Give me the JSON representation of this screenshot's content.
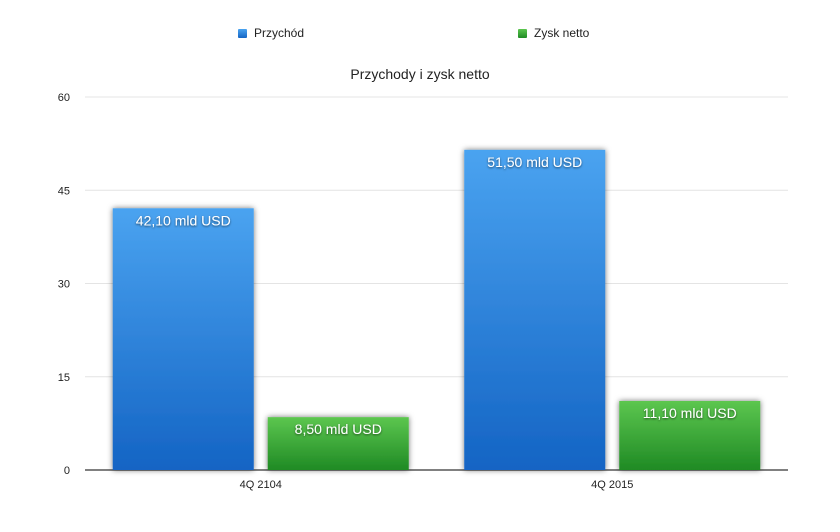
{
  "chart_data": {
    "type": "bar",
    "title": "Przychody i zysk netto",
    "categories": [
      "4Q 2104",
      "4Q 2015"
    ],
    "series": [
      {
        "name": "Przychód",
        "values": [
          42.1,
          51.5
        ],
        "labels": [
          "42,10 mld USD",
          "51,50 mld USD"
        ],
        "color_top": "#4aa3f0",
        "color_bottom": "#1464c4"
      },
      {
        "name": "Zysk netto",
        "values": [
          8.5,
          11.1
        ],
        "labels": [
          "8,50 mld USD",
          "11,10 mld USD"
        ],
        "color_top": "#5cc64f",
        "color_bottom": "#1f8a24"
      }
    ],
    "ylim": [
      0,
      60
    ],
    "yticks": [
      "0",
      "15",
      "30",
      "45",
      "60"
    ],
    "grid": true,
    "legend": "top"
  }
}
